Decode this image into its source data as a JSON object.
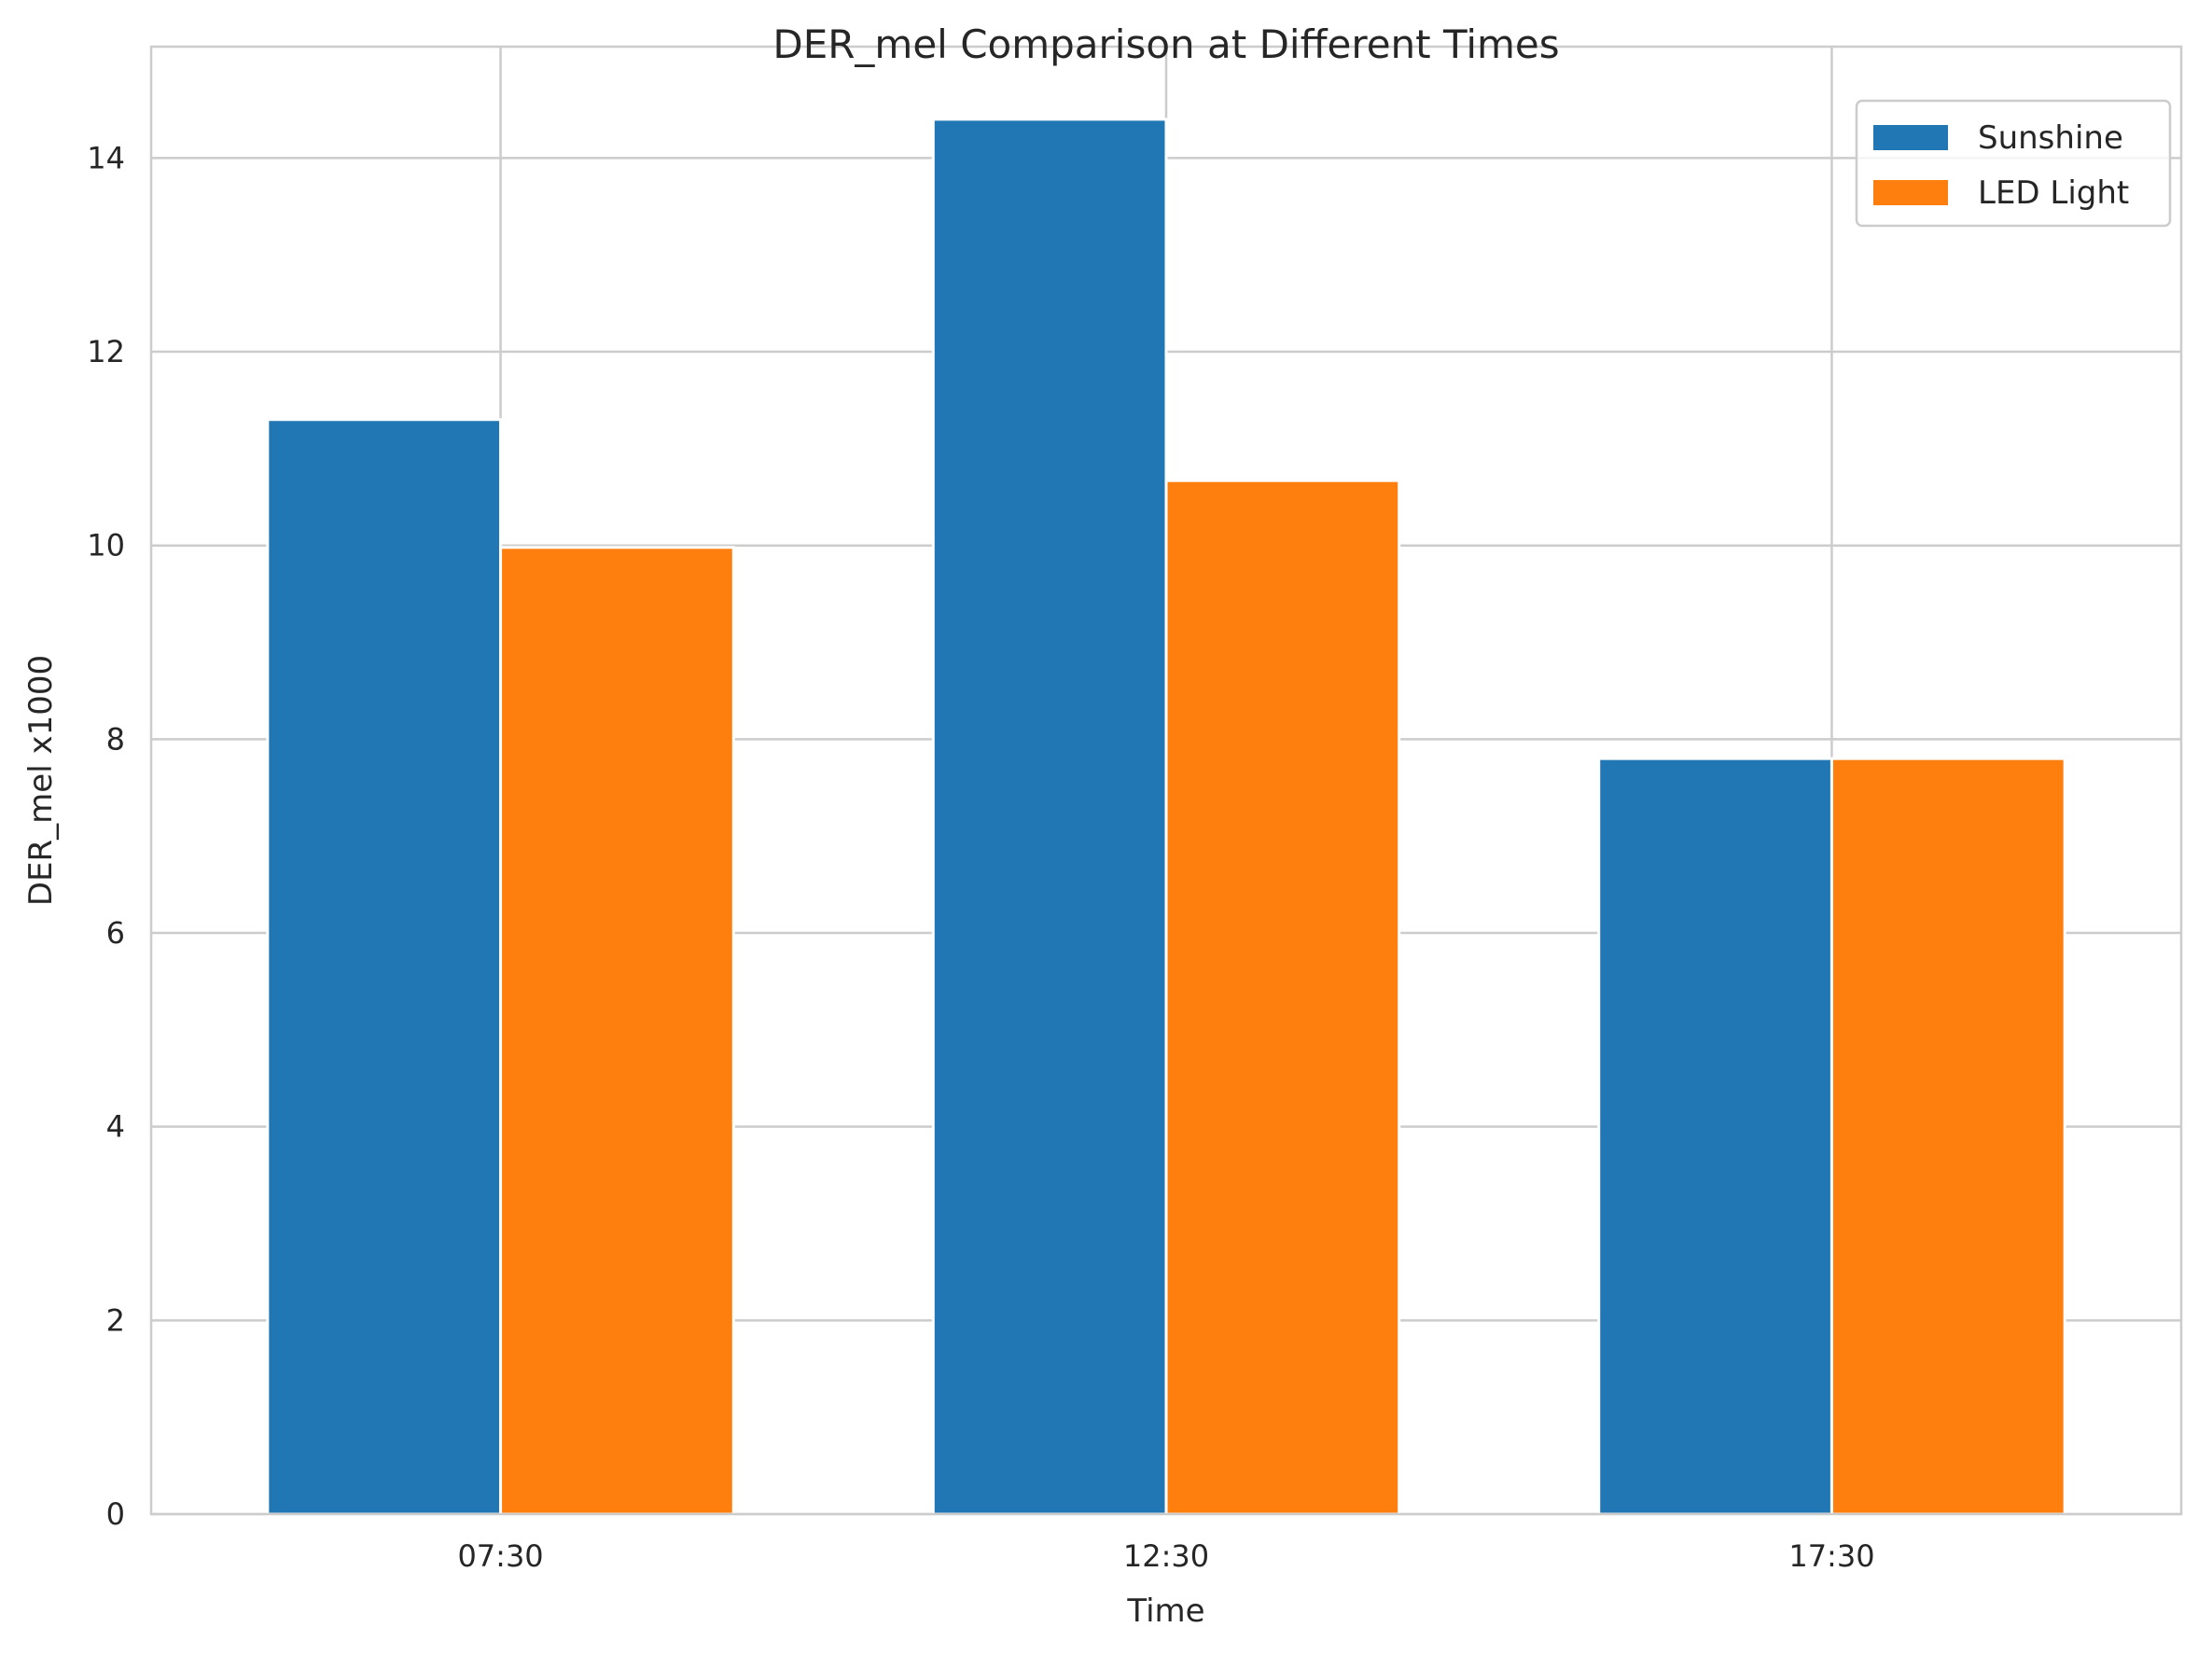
{
  "chart_data": {
    "type": "bar",
    "title": "DER_mel Comparison at Different Times",
    "xlabel": "Time",
    "ylabel": "DER_mel x1000",
    "categories": [
      "07:30",
      "12:30",
      "17:30"
    ],
    "series": [
      {
        "name": "Sunshine",
        "values": [
          11.3,
          14.4,
          7.8
        ],
        "color": "#2077b4"
      },
      {
        "name": "LED Light",
        "values": [
          9.98,
          10.67,
          7.8
        ],
        "color": "#ff7f0e"
      }
    ],
    "ylim": [
      0,
      15.15
    ],
    "yticks": [
      0,
      2,
      4,
      6,
      8,
      10,
      12,
      14
    ],
    "grid": true,
    "legend_position": "top-right",
    "colors": {
      "grid": "#cccccc",
      "frame": "#cccccc",
      "text": "#262626",
      "background": "#ffffff"
    }
  }
}
